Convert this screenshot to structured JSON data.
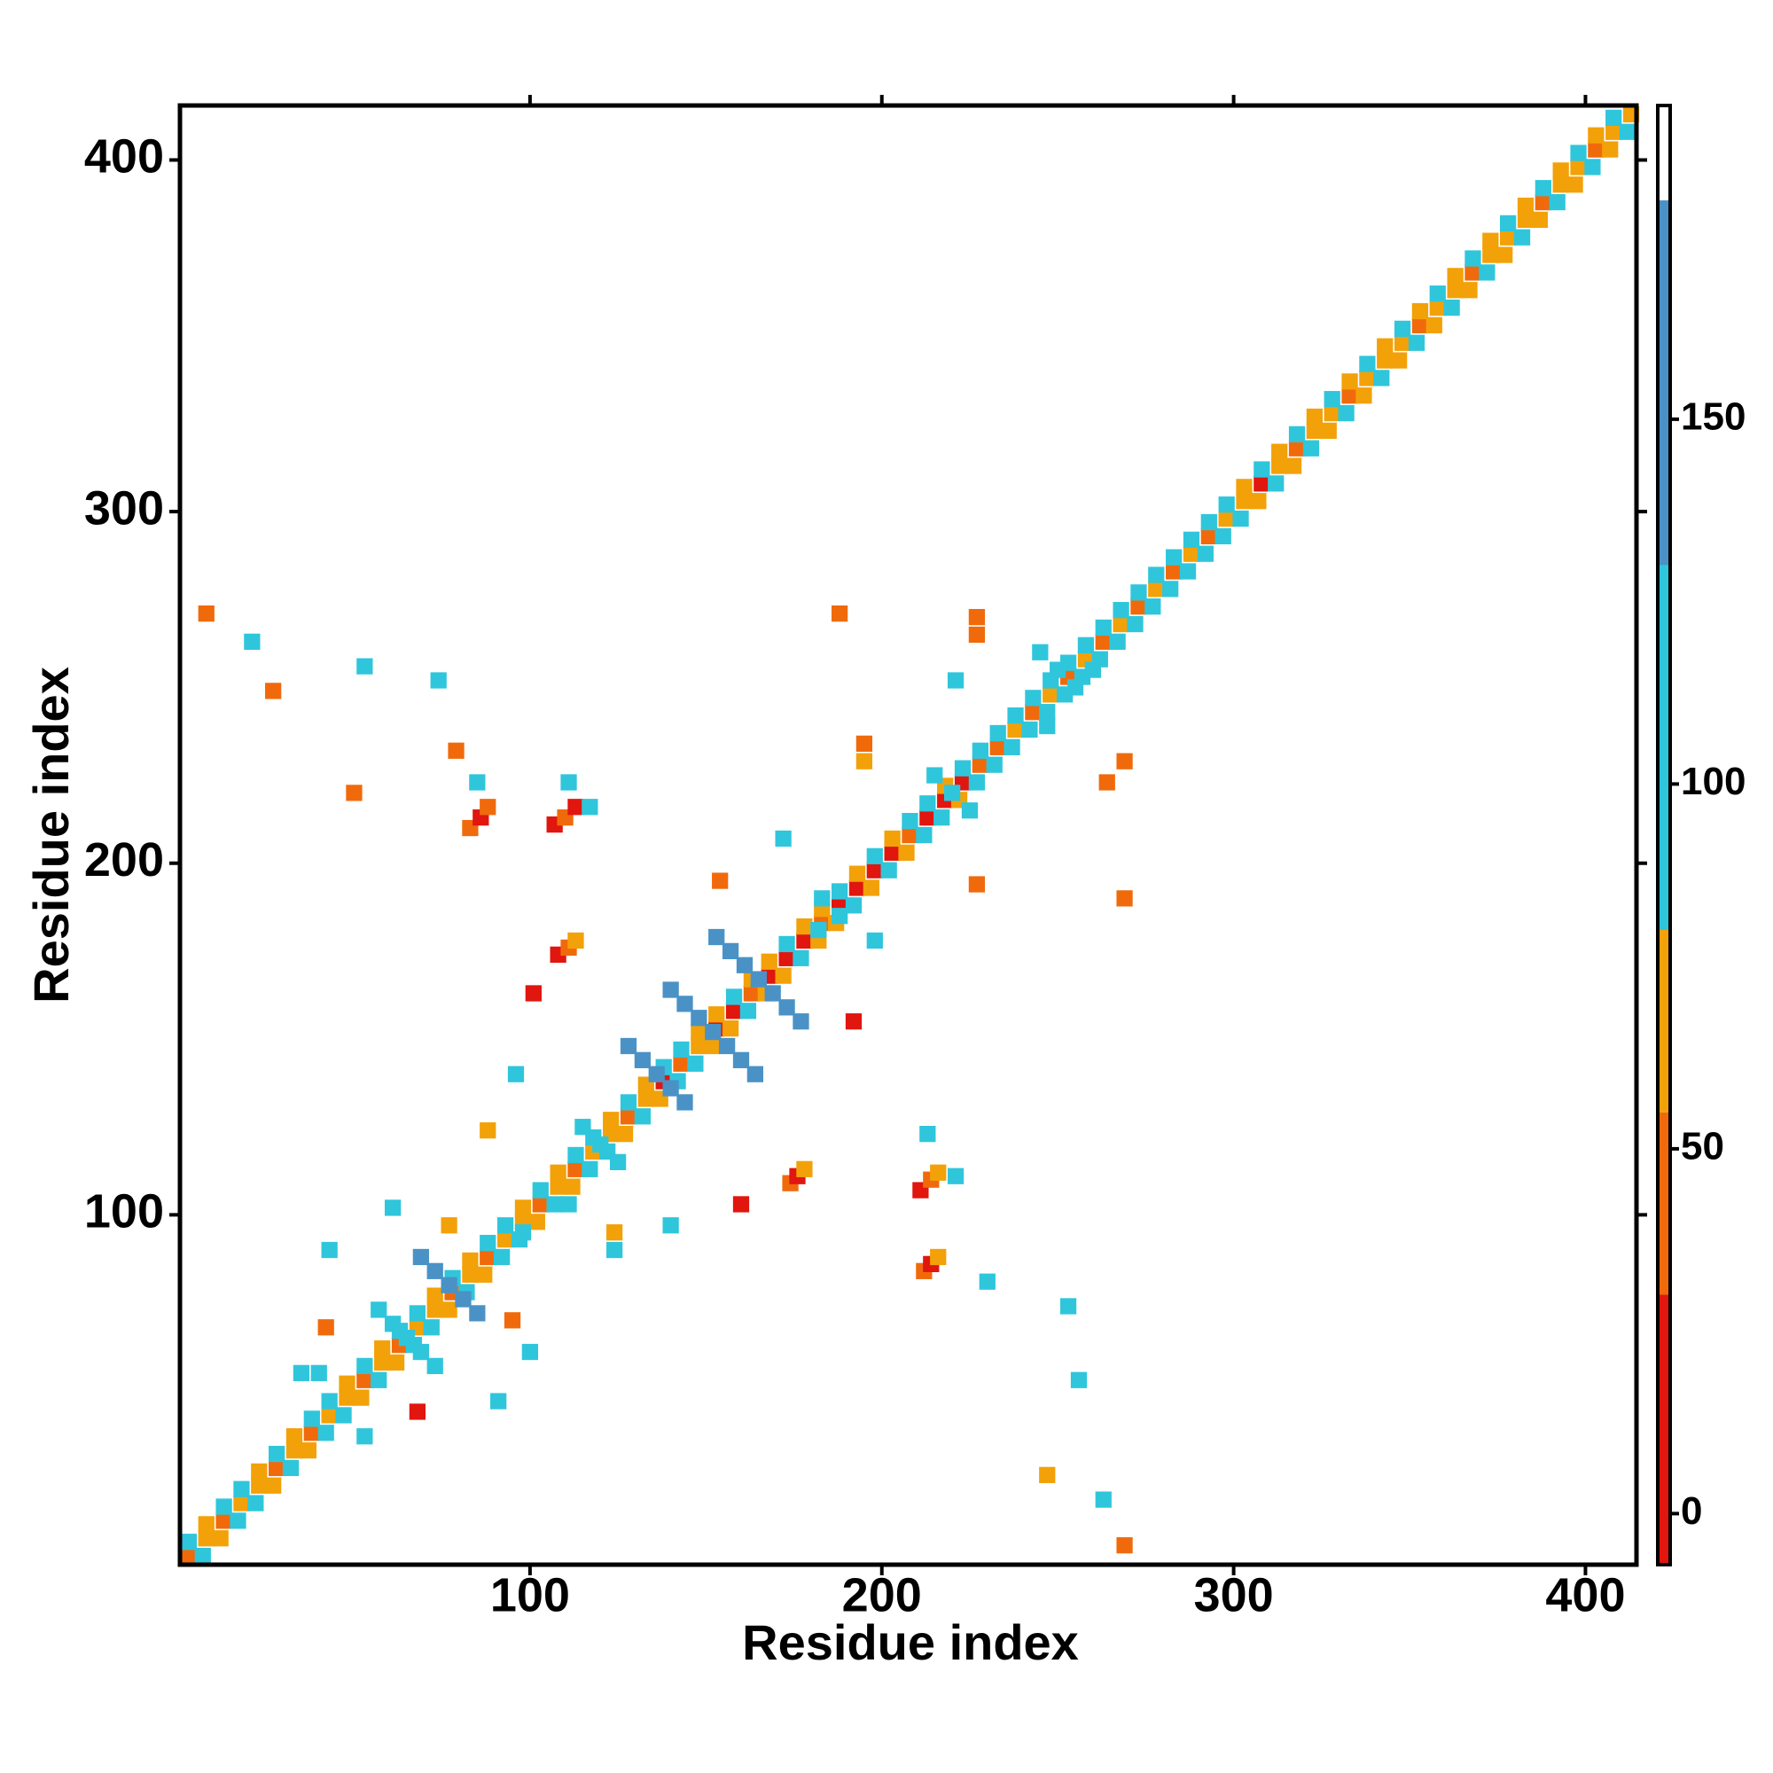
{
  "chart_data": {
    "type": "heatmap",
    "x_label": "Residue index",
    "y_label": "Residue index",
    "xlim": [
      0.5,
      414.5
    ],
    "ylim": [
      0.5,
      415.5
    ],
    "xticks": [
      100,
      200,
      300,
      400
    ],
    "yticks": [
      100,
      200,
      300,
      400
    ],
    "colorbar": {
      "bins": [
        -7,
        30,
        55,
        80,
        130,
        180,
        193
      ],
      "colors": [
        "#e0160f",
        "#f06a0c",
        "#f3a108",
        "#2fc6dc",
        "#4a92c6",
        "#ffffff"
      ],
      "ticks": [
        0,
        50,
        100,
        150
      ]
    },
    "x": [
      3,
      8,
      13,
      18,
      23,
      28,
      33,
      38,
      43,
      48,
      53,
      58,
      63,
      68,
      73,
      78,
      83,
      88,
      93,
      98,
      103,
      108,
      113,
      118,
      123,
      128,
      133,
      138,
      143,
      148,
      153,
      158,
      163,
      168,
      173,
      178,
      183,
      188,
      193,
      198,
      203,
      208,
      213,
      218,
      223,
      228,
      233,
      238,
      243,
      248,
      253,
      258,
      263,
      268,
      273,
      278,
      283,
      288,
      293,
      298,
      303,
      308,
      313,
      318,
      323,
      328,
      333,
      338,
      343,
      348,
      353,
      358,
      363,
      368,
      373,
      378,
      383,
      388,
      393,
      398,
      403,
      408,
      413,
      3,
      8,
      13,
      18,
      23,
      28,
      33,
      38,
      43,
      48,
      53,
      58,
      63,
      68,
      73,
      78,
      83,
      88,
      93,
      98,
      103,
      108,
      113,
      118,
      123,
      128,
      133,
      138,
      143,
      148,
      153,
      158,
      163,
      168,
      173,
      178,
      183,
      188,
      193,
      198,
      203,
      208,
      213,
      218,
      223,
      228,
      233,
      238,
      243,
      248,
      253,
      258,
      263,
      268,
      273,
      278,
      283,
      288,
      293,
      298,
      303,
      308,
      313,
      318,
      323,
      328,
      333,
      338,
      343,
      348,
      353,
      358,
      363,
      368,
      373,
      378,
      383,
      388,
      393,
      398,
      403,
      408,
      7,
      12,
      17,
      22,
      27,
      32,
      37,
      42,
      47,
      52,
      57,
      62,
      67,
      72,
      77,
      82,
      87,
      92,
      97,
      102,
      107,
      112,
      117,
      122,
      127,
      132,
      137,
      142,
      147,
      152,
      157,
      162,
      167,
      172,
      177,
      182,
      187,
      192,
      197,
      202,
      207,
      212,
      217,
      222,
      227,
      232,
      237,
      242,
      247,
      252,
      257,
      262,
      267,
      272,
      277,
      282,
      287,
      292,
      297,
      302,
      307,
      312,
      317,
      322,
      327,
      332,
      337,
      342,
      347,
      352,
      357,
      362,
      367,
      372,
      377,
      382,
      387,
      392,
      397,
      402,
      407,
      412,
      153,
      157,
      161,
      165,
      169,
      173,
      177,
      140,
      144,
      148,
      152,
      156,
      160,
      164,
      128,
      132,
      136,
      140,
      144,
      69,
      73,
      77,
      81,
      85,
      57,
      61,
      65,
      69,
      73,
      245,
      250,
      255,
      215,
      220,
      225,
      115,
      120,
      125,
      183,
      188,
      83,
      86,
      88,
      107,
      110,
      113,
      108,
      111,
      113,
      174,
      176,
      178,
      211,
      214,
      216,
      212,
      214,
      216,
      53,
      35,
      100,
      91,
      43,
      61,
      77,
      98,
      124,
      140,
      96,
      88,
      111,
      182,
      198,
      172,
      195,
      221,
      227,
      247,
      269,
      260,
      230,
      253,
      256,
      247,
      269,
      263,
      8,
      21,
      27,
      53,
      74,
      79,
      85,
      50,
      111,
      188,
      195,
      227,
      269,
      227,
      264,
      160,
      101,
      154,
      192,
      117,
      213,
      221,
      42,
      68,
      95,
      124,
      40
    ],
    "y": [
      3,
      8,
      13,
      18,
      23,
      28,
      33,
      38,
      43,
      48,
      53,
      58,
      63,
      68,
      73,
      78,
      83,
      88,
      93,
      98,
      103,
      108,
      113,
      118,
      123,
      128,
      133,
      138,
      143,
      148,
      153,
      158,
      163,
      168,
      173,
      178,
      183,
      188,
      193,
      198,
      203,
      208,
      213,
      218,
      223,
      228,
      233,
      238,
      243,
      248,
      253,
      258,
      263,
      268,
      273,
      278,
      283,
      288,
      293,
      298,
      303,
      308,
      313,
      318,
      323,
      328,
      333,
      338,
      343,
      348,
      353,
      358,
      363,
      368,
      373,
      378,
      383,
      388,
      393,
      398,
      403,
      408,
      413,
      7,
      12,
      17,
      22,
      27,
      32,
      37,
      42,
      47,
      52,
      57,
      62,
      67,
      72,
      77,
      82,
      87,
      92,
      97,
      102,
      107,
      112,
      117,
      122,
      127,
      132,
      137,
      142,
      147,
      152,
      157,
      162,
      167,
      172,
      177,
      182,
      187,
      192,
      197,
      202,
      207,
      212,
      217,
      222,
      227,
      232,
      237,
      242,
      247,
      252,
      257,
      262,
      267,
      272,
      277,
      282,
      287,
      292,
      297,
      302,
      307,
      312,
      317,
      322,
      327,
      332,
      337,
      342,
      347,
      352,
      357,
      362,
      367,
      372,
      377,
      382,
      387,
      392,
      397,
      402,
      407,
      412,
      3,
      8,
      13,
      18,
      23,
      28,
      33,
      38,
      43,
      48,
      53,
      58,
      63,
      68,
      73,
      78,
      83,
      88,
      93,
      98,
      103,
      108,
      113,
      118,
      123,
      128,
      133,
      138,
      143,
      148,
      153,
      158,
      163,
      168,
      173,
      178,
      183,
      188,
      193,
      198,
      203,
      208,
      213,
      218,
      223,
      228,
      233,
      238,
      243,
      248,
      253,
      258,
      263,
      268,
      273,
      278,
      283,
      288,
      293,
      298,
      303,
      308,
      313,
      318,
      323,
      328,
      333,
      338,
      343,
      348,
      353,
      358,
      363,
      368,
      373,
      378,
      383,
      388,
      393,
      398,
      403,
      408,
      179,
      175,
      171,
      167,
      163,
      159,
      155,
      164,
      160,
      156,
      152,
      148,
      144,
      140,
      148,
      144,
      140,
      136,
      132,
      88,
      84,
      80,
      76,
      72,
      73,
      69,
      65,
      61,
      57,
      260,
      255,
      250,
      225,
      220,
      215,
      125,
      120,
      115,
      190,
      185,
      210,
      213,
      216,
      211,
      213,
      216,
      174,
      176,
      178,
      109,
      111,
      113,
      107,
      110,
      112,
      84,
      86,
      88,
      37,
      55,
      61,
      47,
      90,
      102,
      97,
      95,
      90,
      97,
      140,
      124,
      103,
      181,
      178,
      207,
      229,
      252,
      265,
      239,
      229,
      255,
      81,
      74,
      53,
      26,
      6,
      19,
      271,
      263,
      249,
      256,
      252,
      232,
      223,
      220,
      223,
      271,
      234,
      194,
      190,
      270,
      223,
      103,
      163,
      195,
      155,
      216,
      123,
      111,
      68,
      44,
      70,
      95,
      55
    ],
    "values": [
      40,
      60,
      40,
      60,
      60,
      40,
      60,
      40,
      60,
      60,
      40,
      60,
      40,
      60,
      60,
      40,
      60,
      40,
      60,
      60,
      40,
      60,
      40,
      60,
      60,
      40,
      60,
      10,
      40,
      60,
      10,
      10,
      40,
      10,
      10,
      10,
      40,
      10,
      10,
      10,
      10,
      40,
      10,
      10,
      10,
      40,
      40,
      60,
      40,
      60,
      40,
      60,
      40,
      60,
      40,
      60,
      40,
      60,
      40,
      60,
      60,
      10,
      60,
      40,
      60,
      60,
      40,
      60,
      60,
      60,
      40,
      60,
      60,
      40,
      60,
      60,
      60,
      40,
      60,
      60,
      40,
      60,
      60,
      100,
      60,
      100,
      100,
      60,
      100,
      60,
      100,
      100,
      60,
      100,
      60,
      100,
      100,
      60,
      100,
      60,
      100,
      100,
      60,
      100,
      60,
      100,
      100,
      60,
      100,
      60,
      100,
      100,
      60,
      60,
      100,
      60,
      60,
      100,
      60,
      60,
      100,
      60,
      100,
      60,
      100,
      100,
      60,
      100,
      100,
      100,
      100,
      100,
      100,
      100,
      100,
      100,
      100,
      100,
      100,
      100,
      100,
      100,
      100,
      60,
      100,
      60,
      100,
      60,
      100,
      60,
      100,
      60,
      100,
      60,
      100,
      60,
      100,
      60,
      100,
      60,
      100,
      60,
      100,
      60,
      100,
      100,
      60,
      100,
      100,
      60,
      100,
      60,
      100,
      100,
      60,
      100,
      60,
      100,
      100,
      60,
      100,
      60,
      100,
      100,
      60,
      100,
      60,
      100,
      100,
      60,
      100,
      60,
      100,
      100,
      60,
      60,
      100,
      60,
      60,
      100,
      60,
      60,
      100,
      60,
      100,
      60,
      100,
      100,
      60,
      100,
      100,
      100,
      100,
      100,
      100,
      100,
      100,
      100,
      100,
      100,
      100,
      100,
      100,
      100,
      100,
      60,
      100,
      60,
      100,
      60,
      100,
      60,
      100,
      60,
      100,
      60,
      100,
      60,
      100,
      60,
      100,
      60,
      100,
      60,
      100,
      60,
      100,
      150,
      150,
      150,
      150,
      150,
      150,
      150,
      150,
      150,
      150,
      150,
      150,
      150,
      150,
      150,
      150,
      150,
      150,
      150,
      150,
      150,
      150,
      150,
      150,
      100,
      100,
      100,
      100,
      100,
      100,
      100,
      100,
      100,
      100,
      100,
      100,
      100,
      100,
      100,
      100,
      40,
      10,
      40,
      10,
      40,
      10,
      10,
      40,
      60,
      40,
      10,
      60,
      10,
      40,
      60,
      40,
      10,
      60,
      100,
      100,
      100,
      100,
      100,
      100,
      60,
      100,
      100,
      100,
      100,
      60,
      100,
      100,
      100,
      100,
      60,
      100,
      40,
      100,
      40,
      100,
      100,
      100,
      100,
      60,
      40,
      100,
      40,
      100,
      40,
      100,
      100,
      40,
      100,
      40,
      100,
      40,
      40,
      40,
      40,
      40,
      40,
      10,
      10,
      40,
      10,
      100,
      100,
      100,
      40,
      10,
      40,
      60,
      100
    ]
  }
}
